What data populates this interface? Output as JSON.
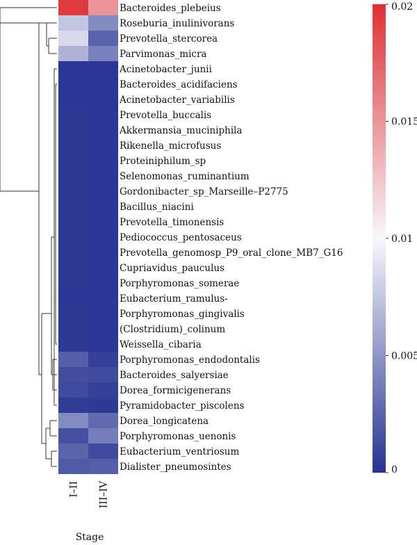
{
  "chart_data": {
    "type": "heatmap",
    "title": "",
    "xlabel": "Stage",
    "columns": [
      "I–II",
      "III–IV"
    ],
    "rows": [
      "Bacteroides_plebeius",
      "Roseburia_inulinivorans",
      "Prevotella_stercorea",
      "Parvimonas_micra",
      "Acinetobacter_junii",
      "Bacteroides_acidifaciens",
      "Acinetobacter_variabilis",
      "Prevotella_buccalis",
      "Akkermansia_muciniphila",
      "Rikenella_microfusus",
      "Proteiniphilum_sp",
      "Selenomonas_ruminantium",
      "Gordonibacter_sp_Marseille–P2775",
      "Bacillus_niacini",
      "Prevotella_timonensis",
      "Pediococcus_pentosaceus",
      "Prevotella_genomosp_P9_oral_clone_MB7_G16",
      "Cupriavidus_pauculus",
      "Porphyromonas_somerae",
      "Eubacterium_ramulus-",
      "Porphyromonas_gingivalis",
      "(Clostridium)_colinum",
      "Weissella_cibaria",
      "Porphyromonas_endodontalis",
      "Bacteroides_salyersiae",
      "Dorea_formicigenerans",
      "Pyramidobacter_piscolens",
      "Dorea_longicatena",
      "Porphyromonas_uenonis",
      "Eubacterium_ventriosum",
      "Dialister_pneumosintes"
    ],
    "values": [
      [
        0.0195,
        0.015
      ],
      [
        0.0075,
        0.0045
      ],
      [
        0.0085,
        0.0025
      ],
      [
        0.0065,
        0.004
      ],
      [
        0.0002,
        0.0002
      ],
      [
        0.0002,
        0.0002
      ],
      [
        0.0002,
        0.0002
      ],
      [
        0.0003,
        0.0002
      ],
      [
        0.0003,
        0.0002
      ],
      [
        0.0003,
        0.0002
      ],
      [
        0.0003,
        0.0002
      ],
      [
        0.0003,
        0.0002
      ],
      [
        0.0003,
        0.0002
      ],
      [
        0.0003,
        0.0002
      ],
      [
        0.0003,
        0.0002
      ],
      [
        0.0003,
        0.0002
      ],
      [
        0.0003,
        0.0002
      ],
      [
        0.0003,
        0.0002
      ],
      [
        0.0003,
        0.0002
      ],
      [
        0.0002,
        0.0002
      ],
      [
        0.0003,
        0.0002
      ],
      [
        0.0003,
        0.0002
      ],
      [
        0.0003,
        0.0002
      ],
      [
        0.0022,
        0.0006
      ],
      [
        0.0014,
        0.0012
      ],
      [
        0.0012,
        0.0006
      ],
      [
        0.0005,
        0.0004
      ],
      [
        0.0045,
        0.0028
      ],
      [
        0.0015,
        0.0038
      ],
      [
        0.0025,
        0.0012
      ],
      [
        0.002,
        0.0022
      ]
    ],
    "colorbar": {
      "range": [
        0,
        0.02
      ],
      "ticks": [
        0,
        0.005,
        0.01,
        0.015,
        0.02
      ],
      "tick_labels": [
        "0",
        "0.005",
        "0.01",
        "0.015",
        "0.02"
      ],
      "low_color": "#263392",
      "mid_color": "#f7f7fb",
      "high_color": "#de3034"
    }
  }
}
